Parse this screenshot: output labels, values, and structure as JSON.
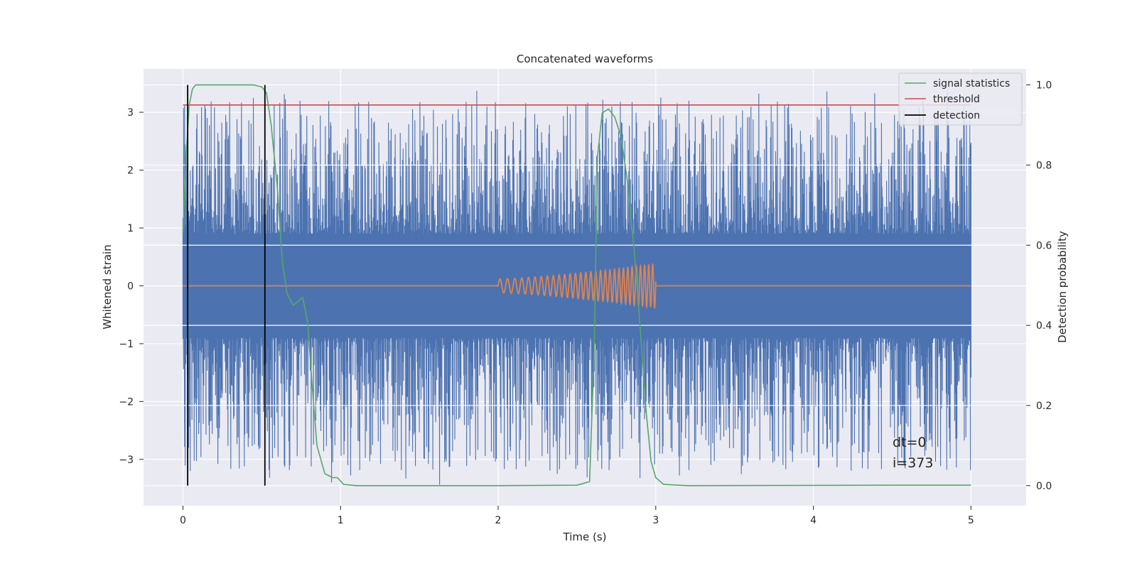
{
  "chart_data": {
    "type": "line",
    "title": "Concatenated waveforms",
    "xlabel": "Time (s)",
    "ylabel_left": "Whitened strain",
    "ylabel_right": "Detection probability",
    "xlim": [
      -0.25,
      5.35
    ],
    "ylim_left": [
      -3.8,
      3.75
    ],
    "ylim_right": [
      -0.05,
      1.04
    ],
    "x_ticks": [
      0,
      1,
      2,
      3,
      4,
      5
    ],
    "x_tick_labels": [
      "0",
      "1",
      "2",
      "3",
      "4",
      "5"
    ],
    "y_left_ticks": [
      -3,
      -2,
      -1,
      0,
      1,
      2,
      3
    ],
    "y_left_tick_labels": [
      "−3",
      "−2",
      "−1",
      "0",
      "1",
      "2",
      "3"
    ],
    "y_right_ticks": [
      0.0,
      0.2,
      0.4,
      0.6,
      0.8,
      1.0
    ],
    "y_right_tick_labels": [
      "0.0",
      "0.2",
      "0.4",
      "0.6",
      "0.8",
      "1.0"
    ],
    "grid": true,
    "legend_position": "top-right",
    "legend": [
      "signal statistics",
      "threshold",
      "detection"
    ],
    "noise": {
      "axis": "left",
      "color": "#4c72b0",
      "x_range": [
        0,
        5
      ],
      "core_amplitude": 0.7,
      "peak_range": [
        -3.45,
        3.4
      ]
    },
    "chirp": {
      "axis": "left",
      "color": "#dd8452",
      "x_range": [
        2.0,
        3.0
      ],
      "amplitude_range": [
        0.12,
        0.38
      ]
    },
    "signal_statistics": {
      "axis": "right",
      "color": "#55a868",
      "x": [
        0.0,
        0.02,
        0.04,
        0.06,
        0.08,
        0.1,
        0.15,
        0.3,
        0.45,
        0.5,
        0.53,
        0.56,
        0.6,
        0.63,
        0.66,
        0.7,
        0.73,
        0.76,
        0.79,
        0.82,
        0.85,
        0.9,
        0.95,
        0.98,
        1.02,
        1.1,
        1.5,
        2.0,
        2.5,
        2.58,
        2.61,
        2.63,
        2.66,
        2.7,
        2.74,
        2.78,
        2.82,
        2.86,
        2.9,
        2.94,
        2.97,
        3.0,
        3.05,
        3.2,
        4.5,
        5.0
      ],
      "y": [
        0.63,
        0.82,
        0.95,
        0.99,
        1.0,
        1.0,
        1.0,
        1.0,
        1.0,
        0.995,
        0.98,
        0.9,
        0.74,
        0.56,
        0.48,
        0.45,
        0.46,
        0.47,
        0.41,
        0.25,
        0.1,
        0.03,
        0.02,
        0.02,
        0.003,
        0.0,
        0.0,
        0.0,
        0.001,
        0.01,
        0.35,
        0.82,
        0.93,
        0.94,
        0.92,
        0.87,
        0.76,
        0.6,
        0.4,
        0.18,
        0.06,
        0.02,
        0.003,
        0.0,
        0.001,
        0.001
      ]
    },
    "threshold": {
      "axis": "right",
      "color": "#c44e52",
      "value": 0.95,
      "x_range": [
        0,
        5
      ]
    },
    "detections": {
      "axis": "right",
      "color": "#000000",
      "x": [
        0.03,
        0.52
      ],
      "y_range": [
        0.0,
        1.0
      ]
    },
    "annotations": [
      "dt=0",
      "i=373"
    ]
  }
}
